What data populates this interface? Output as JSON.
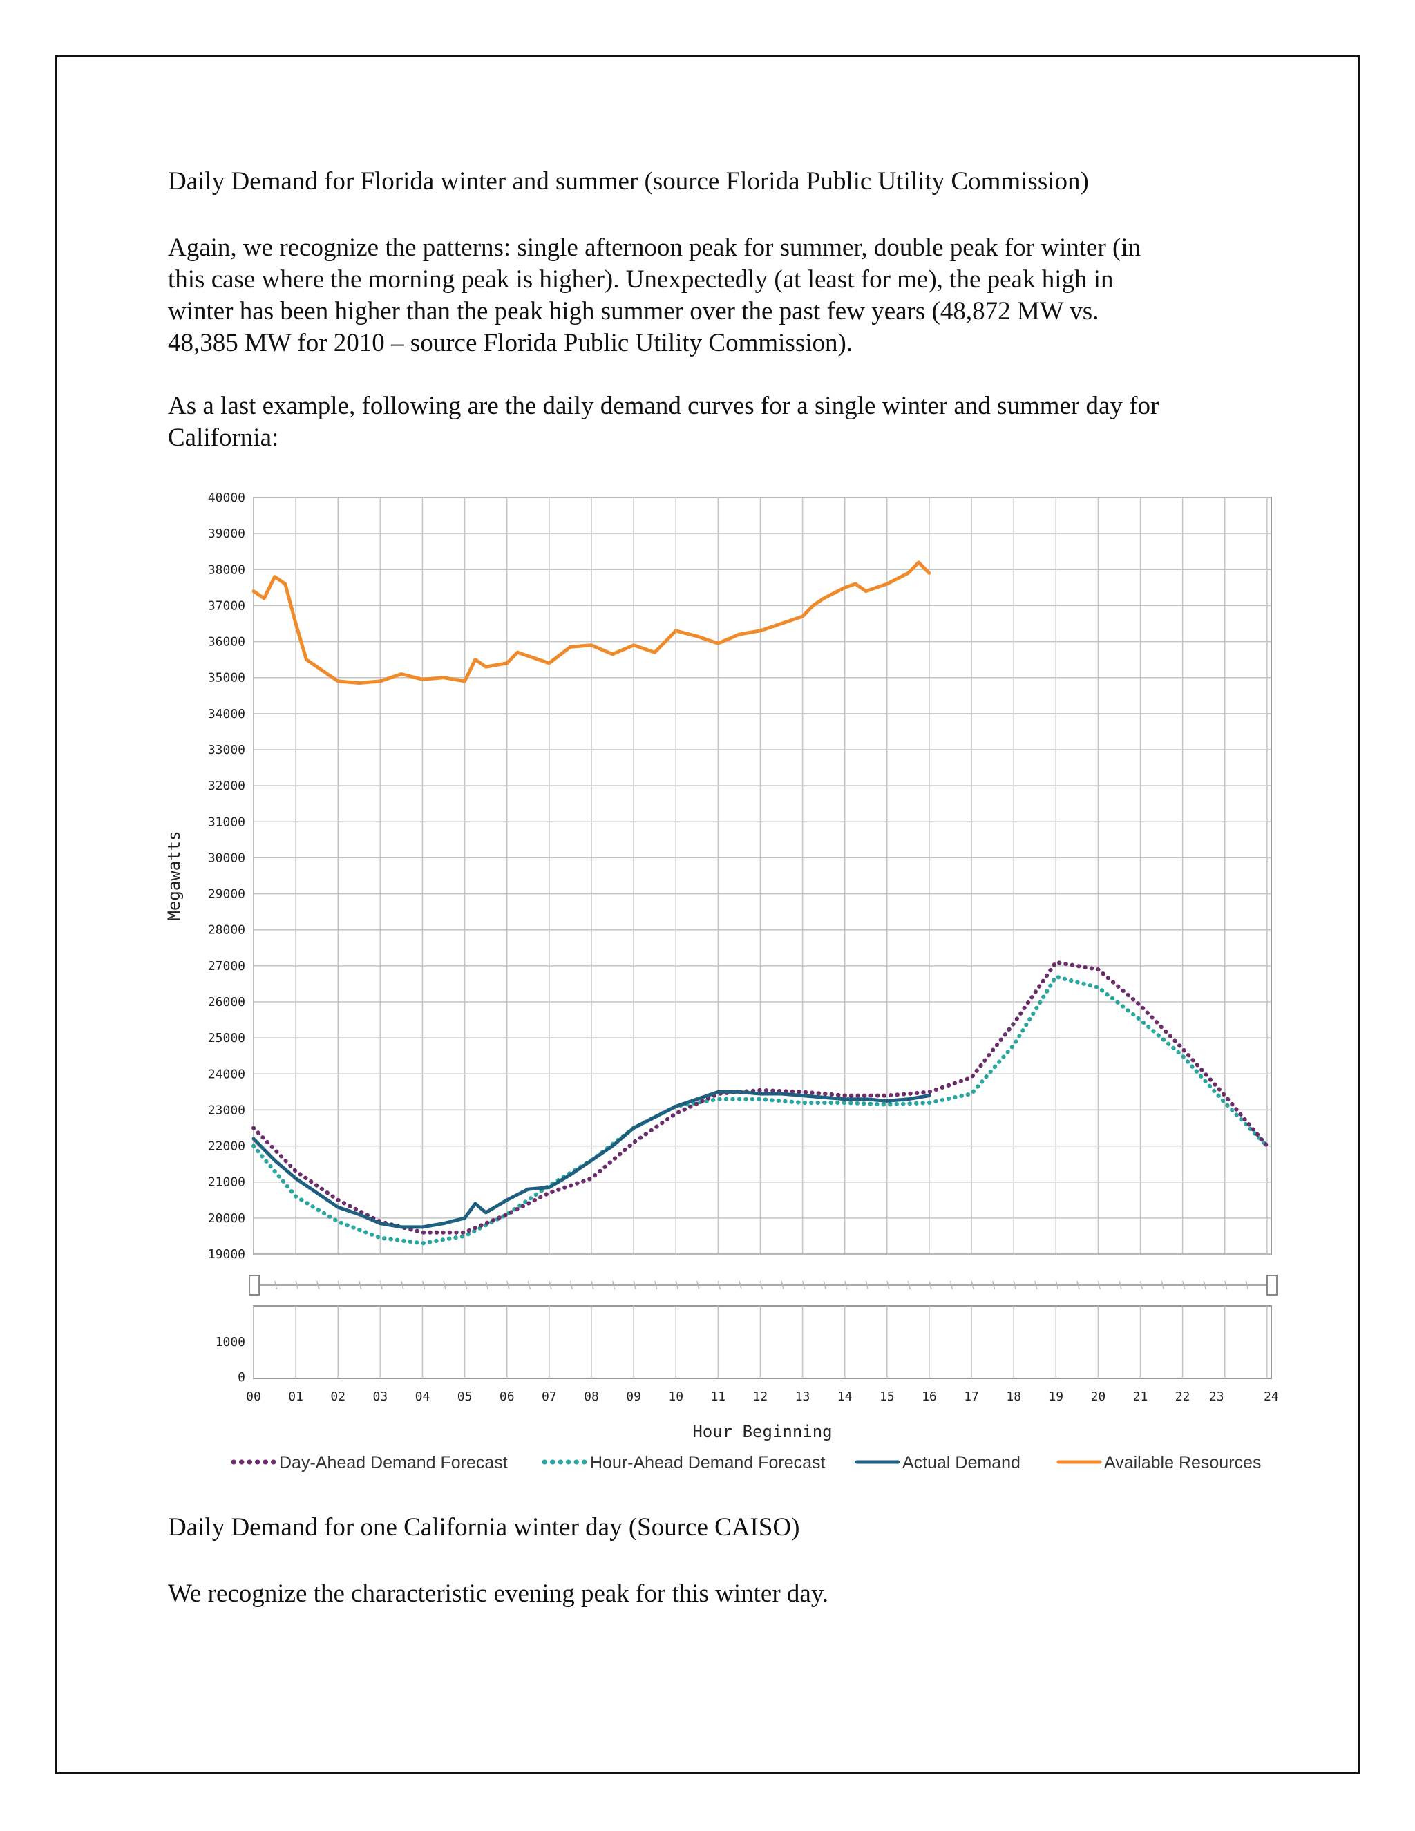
{
  "document": {
    "caption1": "Daily Demand for Florida winter and summer (source Florida Public Utility Commission)",
    "paragraph1_lines": [
      "Again, we recognize the patterns: single afternoon peak for summer, double peak for winter (in",
      "this case where the morning peak is higher). Unexpectedly (at least for me), the peak high in",
      "winter has been higher than the peak high summer over the past few years (48,872 MW vs.",
      "48,385 MW for 2010 – source Florida Public Utility Commission)."
    ],
    "paragraph2_lines": [
      "As a last example, following are the daily demand curves for a single winter and summer day for",
      "California:"
    ],
    "caption2": "Daily Demand for one California winter day (Source CAISO)",
    "paragraph3": "We recognize the characteristic evening peak for this winter day."
  },
  "chart_data": {
    "type": "line",
    "xlabel": "Hour Beginning",
    "ylabel": "Megawatts",
    "ylim": [
      19000,
      40000
    ],
    "yticks": [
      "40000",
      "39000",
      "38000",
      "37000",
      "36000",
      "35000",
      "34000",
      "33000",
      "32000",
      "31000",
      "30000",
      "29000",
      "28000",
      "27000",
      "26000",
      "25000",
      "24000",
      "23000",
      "22000",
      "21000",
      "20000",
      "19000"
    ],
    "xticks": [
      "00",
      "01",
      "02",
      "03",
      "04",
      "05",
      "06",
      "07",
      "08",
      "09",
      "10",
      "11",
      "12",
      "13",
      "14",
      "15",
      "16",
      "17",
      "18",
      "19",
      "20",
      "21",
      "22",
      "23",
      "24"
    ],
    "lower_panel_yticks": [
      "1000",
      "0"
    ],
    "grid": true,
    "legend_position": "bottom",
    "series": [
      {
        "name": "Day-Ahead Demand Forecast",
        "style": "dotted",
        "color": "#6b2d6b",
        "x": [
          0,
          1,
          2,
          3,
          4,
          5,
          6,
          7,
          8,
          9,
          10,
          11,
          12,
          13,
          14,
          15,
          16,
          17,
          18,
          19,
          20,
          21,
          22,
          23,
          24
        ],
        "values": [
          22500,
          21300,
          20500,
          19900,
          19600,
          19600,
          20100,
          20700,
          21100,
          22100,
          22900,
          23450,
          23550,
          23500,
          23400,
          23400,
          23500,
          23900,
          25400,
          27100,
          26900,
          25900,
          24700,
          23400,
          22000
        ]
      },
      {
        "name": "Hour-Ahead Demand Forecast",
        "style": "dotted",
        "color": "#2aa6a0",
        "x": [
          0,
          1,
          2,
          3,
          4,
          5,
          6,
          7,
          8,
          9,
          10,
          11,
          12,
          13,
          14,
          15,
          16,
          17,
          18,
          19,
          20,
          21,
          22,
          23,
          24
        ],
        "values": [
          22000,
          20600,
          19900,
          19450,
          19300,
          19500,
          20100,
          20900,
          21600,
          22500,
          23100,
          23300,
          23300,
          23200,
          23200,
          23150,
          23200,
          23450,
          24800,
          26700,
          26400,
          25500,
          24500,
          23200,
          22000
        ]
      },
      {
        "name": "Actual Demand",
        "style": "solid",
        "color": "#1f5f80",
        "x": [
          0,
          0.5,
          1,
          1.5,
          2,
          2.5,
          3,
          3.5,
          4,
          4.5,
          5,
          5.25,
          5.5,
          6,
          6.5,
          7,
          7.5,
          8,
          8.5,
          9,
          9.5,
          10,
          10.5,
          11,
          11.5,
          12,
          12.5,
          13,
          13.5,
          14,
          14.5,
          15,
          15.5,
          16
        ],
        "values": [
          22200,
          21600,
          21100,
          20700,
          20300,
          20100,
          19850,
          19750,
          19750,
          19850,
          20000,
          20400,
          20150,
          20500,
          20800,
          20850,
          21200,
          21600,
          22000,
          22500,
          22800,
          23100,
          23300,
          23500,
          23500,
          23450,
          23450,
          23400,
          23350,
          23300,
          23300,
          23250,
          23300,
          23400
        ]
      },
      {
        "name": "Available Resources",
        "style": "solid",
        "color": "#ef8b2b",
        "x": [
          0,
          0.25,
          0.5,
          0.75,
          1,
          1.25,
          1.5,
          2,
          2.5,
          3,
          3.5,
          4,
          4.5,
          5,
          5.25,
          5.5,
          6,
          6.25,
          6.5,
          7,
          7.5,
          8,
          8.5,
          9,
          9.5,
          10,
          10.5,
          11,
          11.5,
          12,
          12.5,
          13,
          13.25,
          13.5,
          14,
          14.25,
          14.5,
          15,
          15.5,
          15.75,
          16
        ],
        "values": [
          37400,
          37200,
          37800,
          37600,
          36500,
          35500,
          35300,
          34900,
          34850,
          34900,
          35100,
          34950,
          35000,
          34900,
          35500,
          35300,
          35400,
          35700,
          35600,
          35400,
          35850,
          35900,
          35650,
          35900,
          35700,
          36300,
          36150,
          35950,
          36200,
          36300,
          36500,
          36700,
          37000,
          37200,
          37500,
          37600,
          37400,
          37600,
          37900,
          38200,
          37900
        ]
      }
    ]
  }
}
